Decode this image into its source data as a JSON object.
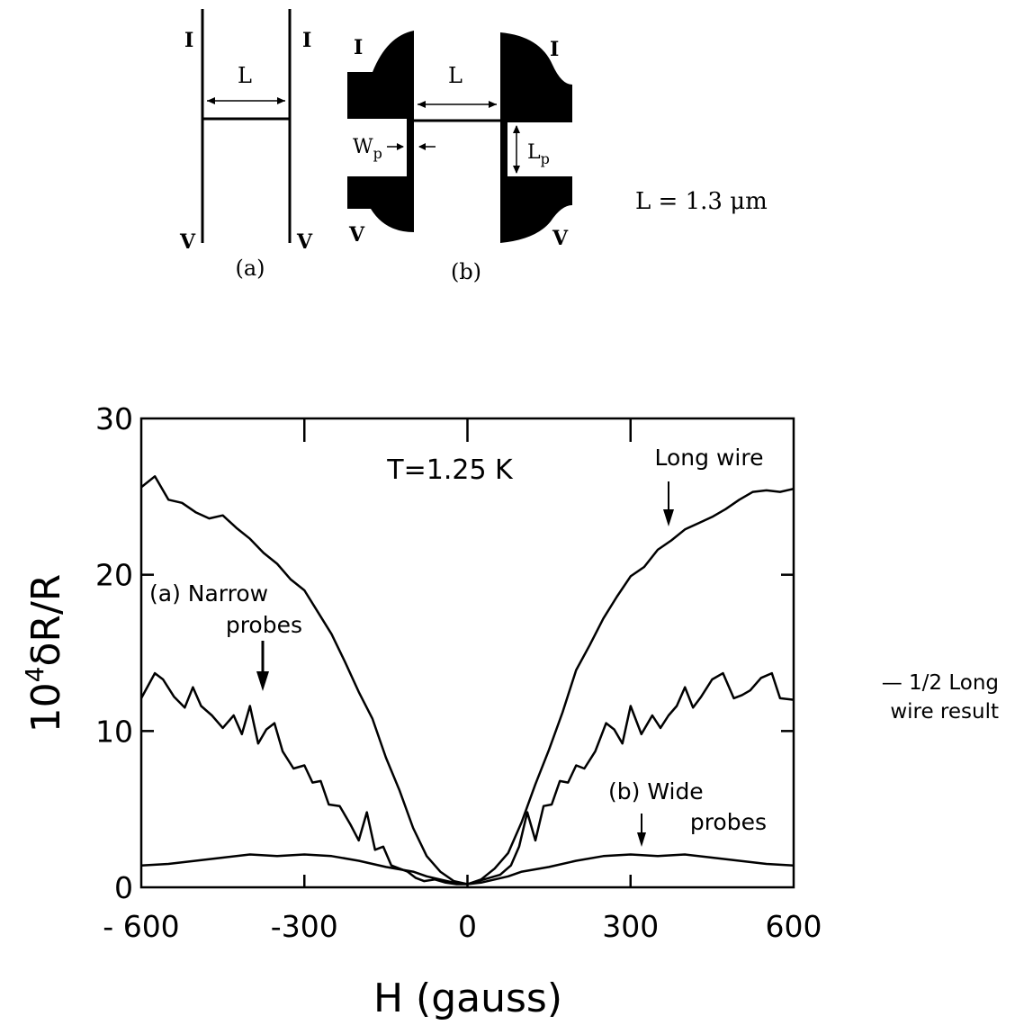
{
  "schematic": {
    "current_label": "I",
    "voltage_label": "V",
    "length_label": "L",
    "probe_width_label": "W",
    "probe_width_sub": "p",
    "probe_length_label": "L",
    "probe_length_sub": "p",
    "panel_a_caption": "(a)",
    "panel_b_caption": "(b)",
    "length_value_text": "L = 1.3 μm"
  },
  "chart_data": {
    "type": "line",
    "xlabel": "H (gauss)",
    "ylabel_prefix": "10",
    "ylabel_exp": "4",
    "ylabel_suffix": "δR/R",
    "xlim": [
      -600,
      600
    ],
    "ylim": [
      0,
      30
    ],
    "x_ticks": [
      -600,
      -300,
      0,
      300,
      600
    ],
    "x_tick_labels": [
      "- 600",
      "-300",
      "0",
      "300",
      "600"
    ],
    "y_ticks": [
      0,
      10,
      20,
      30
    ],
    "y_tick_labels": [
      "0",
      "10",
      "20",
      "30"
    ],
    "grid": false,
    "annotations": {
      "temperature": "T=1.25 K",
      "long_wire": "Long wire",
      "narrow_line1": "(a) Narrow",
      "narrow_line2": "probes",
      "wide_line1": "(b)  Wide",
      "wide_line2": "probes",
      "side_note_line1": "— 1/2  Long",
      "side_note_line2": "wire  result"
    },
    "series": [
      {
        "name": "Long wire",
        "x": [
          -600,
          -575,
          -550,
          -525,
          -500,
          -475,
          -450,
          -425,
          -400,
          -375,
          -350,
          -325,
          -300,
          -275,
          -250,
          -225,
          -200,
          -175,
          -150,
          -125,
          -100,
          -75,
          -50,
          -25,
          0,
          25,
          50,
          75,
          100,
          125,
          150,
          175,
          200,
          225,
          250,
          275,
          300,
          325,
          350,
          375,
          400,
          425,
          450,
          475,
          500,
          525,
          550,
          575,
          600
        ],
        "y": [
          25.6,
          26.3,
          24.8,
          24.6,
          24.0,
          23.6,
          23.8,
          23.0,
          22.3,
          21.4,
          20.7,
          19.7,
          19.0,
          17.6,
          16.2,
          14.4,
          12.5,
          10.8,
          8.3,
          6.2,
          3.8,
          2.0,
          1.0,
          0.4,
          0.2,
          0.5,
          1.2,
          2.2,
          4.2,
          6.6,
          8.8,
          11.2,
          13.9,
          15.5,
          17.2,
          18.6,
          19.9,
          20.5,
          21.6,
          22.2,
          22.9,
          23.3,
          23.7,
          24.2,
          24.8,
          25.3,
          25.4,
          25.3,
          25.5
        ]
      },
      {
        "name": "(a) Narrow probes",
        "x": [
          -600,
          -575,
          -560,
          -540,
          -520,
          -505,
          -490,
          -470,
          -450,
          -430,
          -415,
          -400,
          -385,
          -370,
          -355,
          -340,
          -320,
          -300,
          -285,
          -270,
          -255,
          -235,
          -215,
          -200,
          -185,
          -170,
          -155,
          -140,
          -125,
          -110,
          -95,
          -80,
          -60,
          -40,
          -20,
          0,
          20,
          40,
          60,
          80,
          95,
          110,
          125,
          140,
          155,
          170,
          185,
          200,
          215,
          235,
          255,
          270,
          285,
          300,
          320,
          340,
          355,
          370,
          385,
          400,
          415,
          430,
          450,
          470,
          490,
          505,
          520,
          540,
          560,
          575,
          600
        ],
        "y": [
          12.1,
          13.7,
          13.3,
          12.2,
          11.5,
          12.8,
          11.6,
          11.0,
          10.2,
          11.0,
          9.8,
          11.6,
          9.2,
          10.1,
          10.5,
          8.7,
          7.6,
          7.8,
          6.7,
          6.8,
          5.3,
          5.2,
          4.0,
          3.0,
          4.8,
          2.4,
          2.6,
          1.4,
          1.2,
          1.0,
          0.6,
          0.4,
          0.5,
          0.3,
          0.2,
          0.2,
          0.4,
          0.6,
          0.8,
          1.4,
          2.6,
          4.8,
          3.0,
          5.2,
          5.3,
          6.8,
          6.7,
          7.8,
          7.6,
          8.7,
          10.5,
          10.1,
          9.2,
          11.6,
          9.8,
          11.0,
          10.2,
          11.0,
          11.6,
          12.8,
          11.5,
          12.2,
          13.3,
          13.7,
          12.1,
          12.3,
          12.6,
          13.4,
          13.7,
          12.1,
          12.0
        ]
      },
      {
        "name": "(b) Wide probes",
        "x": [
          -600,
          -550,
          -500,
          -450,
          -400,
          -350,
          -300,
          -250,
          -200,
          -150,
          -100,
          -75,
          -50,
          -25,
          0,
          25,
          50,
          75,
          100,
          150,
          200,
          250,
          300,
          350,
          400,
          450,
          500,
          550,
          600
        ],
        "y": [
          1.4,
          1.5,
          1.7,
          1.9,
          2.1,
          2.0,
          2.1,
          2.0,
          1.7,
          1.3,
          1.0,
          0.7,
          0.5,
          0.3,
          0.2,
          0.3,
          0.5,
          0.7,
          1.0,
          1.3,
          1.7,
          2.0,
          2.1,
          2.0,
          2.1,
          1.9,
          1.7,
          1.5,
          1.4
        ]
      }
    ]
  }
}
